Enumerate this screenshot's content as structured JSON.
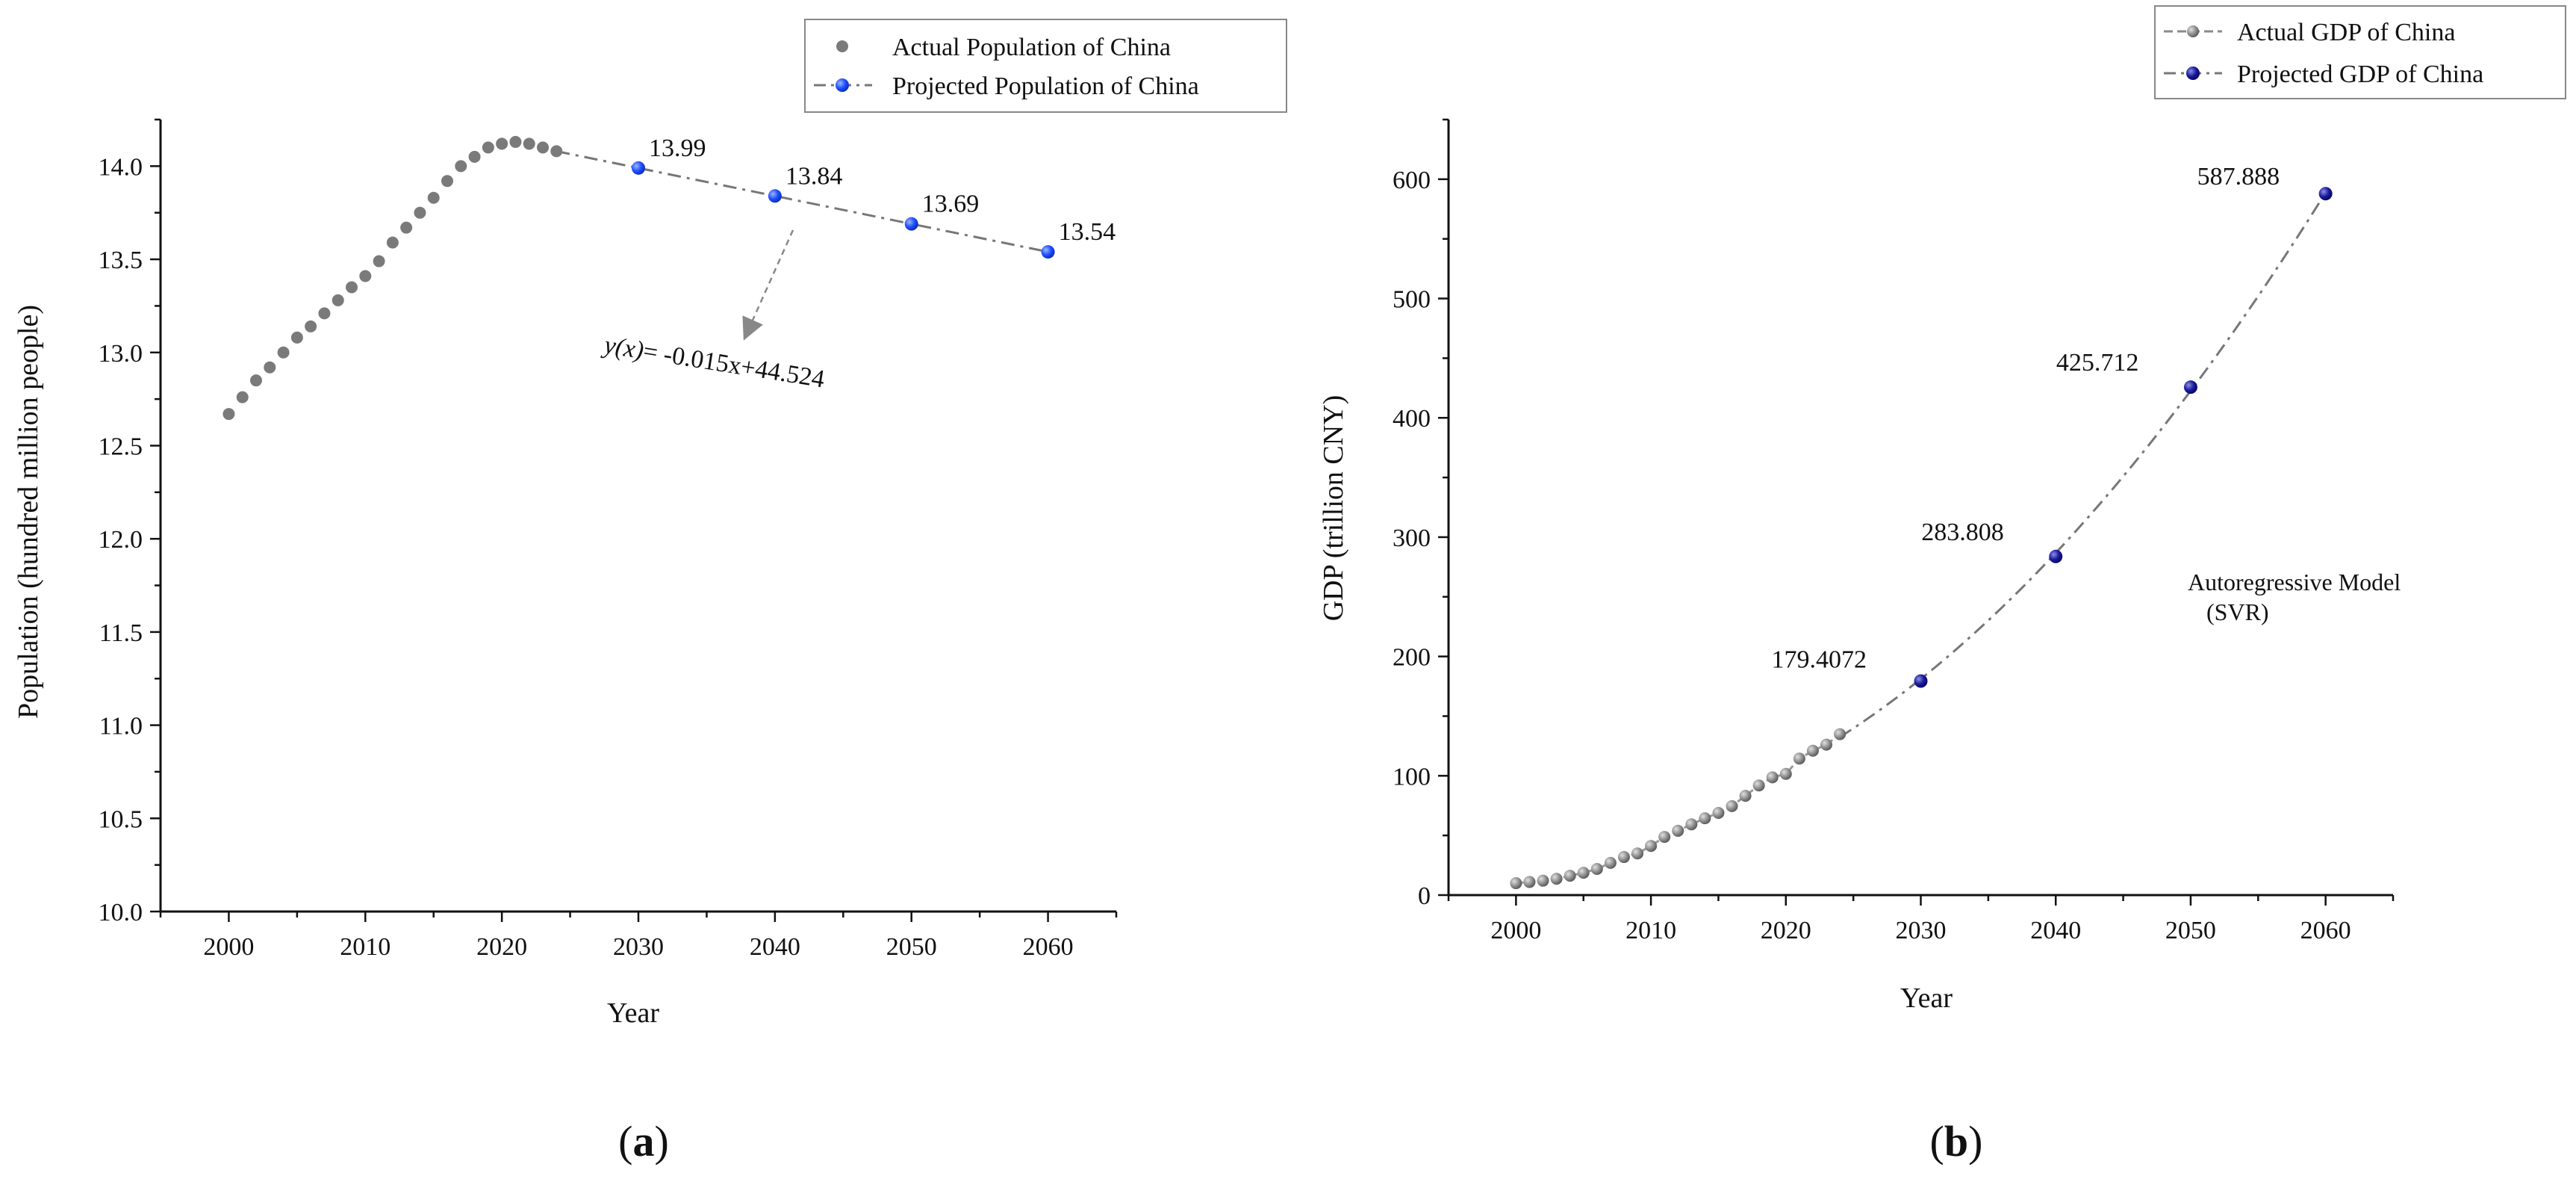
{
  "chart_data": [
    {
      "panel_label_open": "(",
      "panel_label": "a",
      "panel_label_close": ")",
      "type": "line",
      "xlabel": "Year",
      "ylabel": "Population (hundred million people)",
      "xlim": [
        1995,
        2065
      ],
      "ylim": [
        10.0,
        14.25
      ],
      "xticks": [
        2000,
        2010,
        2020,
        2030,
        2040,
        2050,
        2060
      ],
      "yticks": [
        "10.0",
        "10.5",
        "11.0",
        "11.5",
        "12.0",
        "12.5",
        "13.0",
        "13.5",
        "14.0"
      ],
      "legend_position": "top-right",
      "series": [
        {
          "name": "Actual Population of China",
          "style": "dots",
          "color": "#7a7a7a",
          "x": [
            2000,
            2001,
            2002,
            2003,
            2004,
            2005,
            2006,
            2007,
            2008,
            2009,
            2010,
            2011,
            2012,
            2013,
            2014,
            2015,
            2016,
            2017,
            2018,
            2019,
            2020,
            2021,
            2022,
            2023,
            2024
          ],
          "y": [
            12.67,
            12.76,
            12.85,
            12.92,
            13.0,
            13.08,
            13.14,
            13.21,
            13.28,
            13.35,
            13.41,
            13.49,
            13.59,
            13.67,
            13.75,
            13.83,
            13.92,
            14.0,
            14.05,
            14.1,
            14.12,
            14.13,
            14.12,
            14.1,
            14.08
          ]
        },
        {
          "name": "Projected Population of China",
          "style": "dashdot-markers",
          "color": "#1f4fff",
          "x": [
            2030,
            2040,
            2050,
            2060
          ],
          "y": [
            13.99,
            13.84,
            13.69,
            13.54
          ],
          "labels": [
            "13.99",
            "13.84",
            "13.69",
            "13.54"
          ]
        }
      ],
      "annotation": {
        "prefix": "y(x)",
        "text": "= -0.015x+44.524"
      }
    },
    {
      "panel_label_open": "(",
      "panel_label": "b",
      "panel_label_close": ")",
      "type": "line",
      "xlabel": "Year",
      "ylabel": "GDP (trillion CNY)",
      "xlim": [
        1995,
        2065
      ],
      "ylim": [
        0,
        650
      ],
      "xticks": [
        2000,
        2010,
        2020,
        2030,
        2040,
        2050,
        2060
      ],
      "yticks": [
        0,
        100,
        200,
        300,
        400,
        500,
        600
      ],
      "legend_position": "top-right",
      "series": [
        {
          "name": "Actual GDP of China",
          "style": "dash-dots",
          "color": "#8a8a8a",
          "x": [
            2000,
            2001,
            2002,
            2003,
            2004,
            2005,
            2006,
            2007,
            2008,
            2009,
            2010,
            2011,
            2012,
            2013,
            2014,
            2015,
            2016,
            2017,
            2018,
            2019,
            2020,
            2021,
            2022,
            2023,
            2024
          ],
          "y": [
            10.0,
            11.0,
            12.1,
            13.7,
            16.2,
            18.7,
            21.9,
            27.0,
            31.9,
            34.9,
            41.2,
            48.8,
            53.9,
            59.3,
            64.4,
            68.9,
            74.6,
            83.2,
            91.9,
            98.7,
            101.6,
            114.4,
            121.0,
            126.1,
            134.9
          ]
        },
        {
          "name": "Projected GDP of China",
          "style": "dashdot-markers",
          "color": "#1a1aa0",
          "x": [
            2030,
            2040,
            2050,
            2060
          ],
          "y": [
            179.4072,
            283.808,
            425.712,
            587.888
          ],
          "labels": [
            "179.4072",
            "283.808",
            "425.712",
            "587.888"
          ]
        }
      ],
      "annotation": {
        "line1": "Autoregressive Model",
        "line2": "(SVR)"
      }
    }
  ]
}
